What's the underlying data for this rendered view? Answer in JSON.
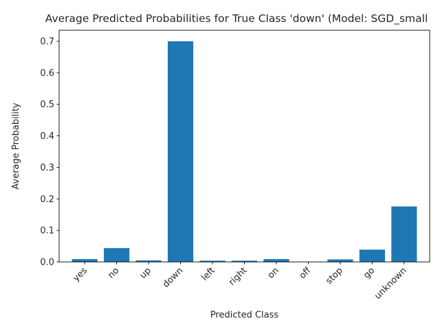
{
  "chart_data": {
    "type": "bar",
    "title": "Average Predicted Probabilities for True Class 'down' (Model: SGD_small",
    "xlabel": "Predicted Class",
    "ylabel": "Average Probability",
    "categories": [
      "yes",
      "no",
      "up",
      "down",
      "left",
      "right",
      "on",
      "off",
      "stop",
      "go",
      "unknown"
    ],
    "values": [
      0.009,
      0.044,
      0.005,
      0.7,
      0.004,
      0.004,
      0.009,
      0.0005,
      0.008,
      0.039,
      0.176
    ],
    "ylim": [
      0,
      0.735
    ],
    "yticks": [
      "0.0",
      "0.1",
      "0.2",
      "0.3",
      "0.4",
      "0.5",
      "0.6",
      "0.7"
    ],
    "bar_color": "#1f77b4",
    "grid": false,
    "legend": "none"
  }
}
